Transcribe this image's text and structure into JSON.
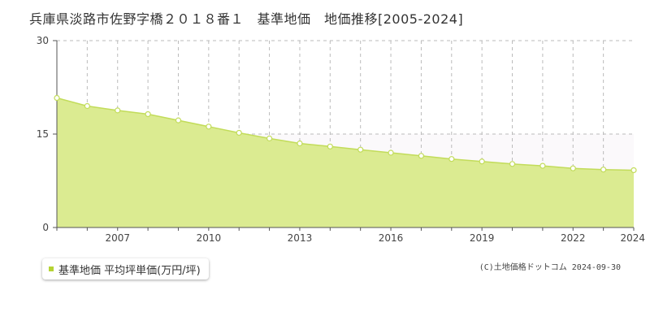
{
  "chart_data": {
    "type": "area",
    "title": "兵庫県淡路市佐野字橋２０１８番１　基準地価　地価推移[2005-2024]",
    "x": [
      2005,
      2006,
      2007,
      2008,
      2009,
      2010,
      2011,
      2012,
      2013,
      2014,
      2015,
      2016,
      2017,
      2018,
      2019,
      2020,
      2021,
      2022,
      2023,
      2024
    ],
    "series": [
      {
        "name": "基準地価 平均坪単価(万円/坪)",
        "values": [
          20.8,
          19.5,
          18.8,
          18.2,
          17.2,
          16.2,
          15.2,
          14.3,
          13.5,
          13.0,
          12.5,
          12.0,
          11.5,
          11.0,
          10.6,
          10.2,
          9.9,
          9.5,
          9.3,
          9.2
        ]
      }
    ],
    "xticks": [
      2007,
      2010,
      2013,
      2016,
      2019,
      2022,
      2024
    ],
    "yticks": [
      0,
      15,
      30
    ],
    "ylim": [
      0,
      30
    ],
    "xlim": [
      2005,
      2024
    ],
    "grid": true,
    "legend_position": "bottom-left"
  },
  "legend": {
    "label": "基準地価 平均坪単価(万円/坪)"
  },
  "credit": "(C)土地価格ドットコム 2024-09-30",
  "colors": {
    "fill": "#dbeb91",
    "line": "#c2dc5a",
    "marker_fill": "#ffffff",
    "grid": "#bbbbbb",
    "axis": "#555555",
    "upper_band": "#fbf9fb",
    "legend_swatch": "#b5d334"
  }
}
